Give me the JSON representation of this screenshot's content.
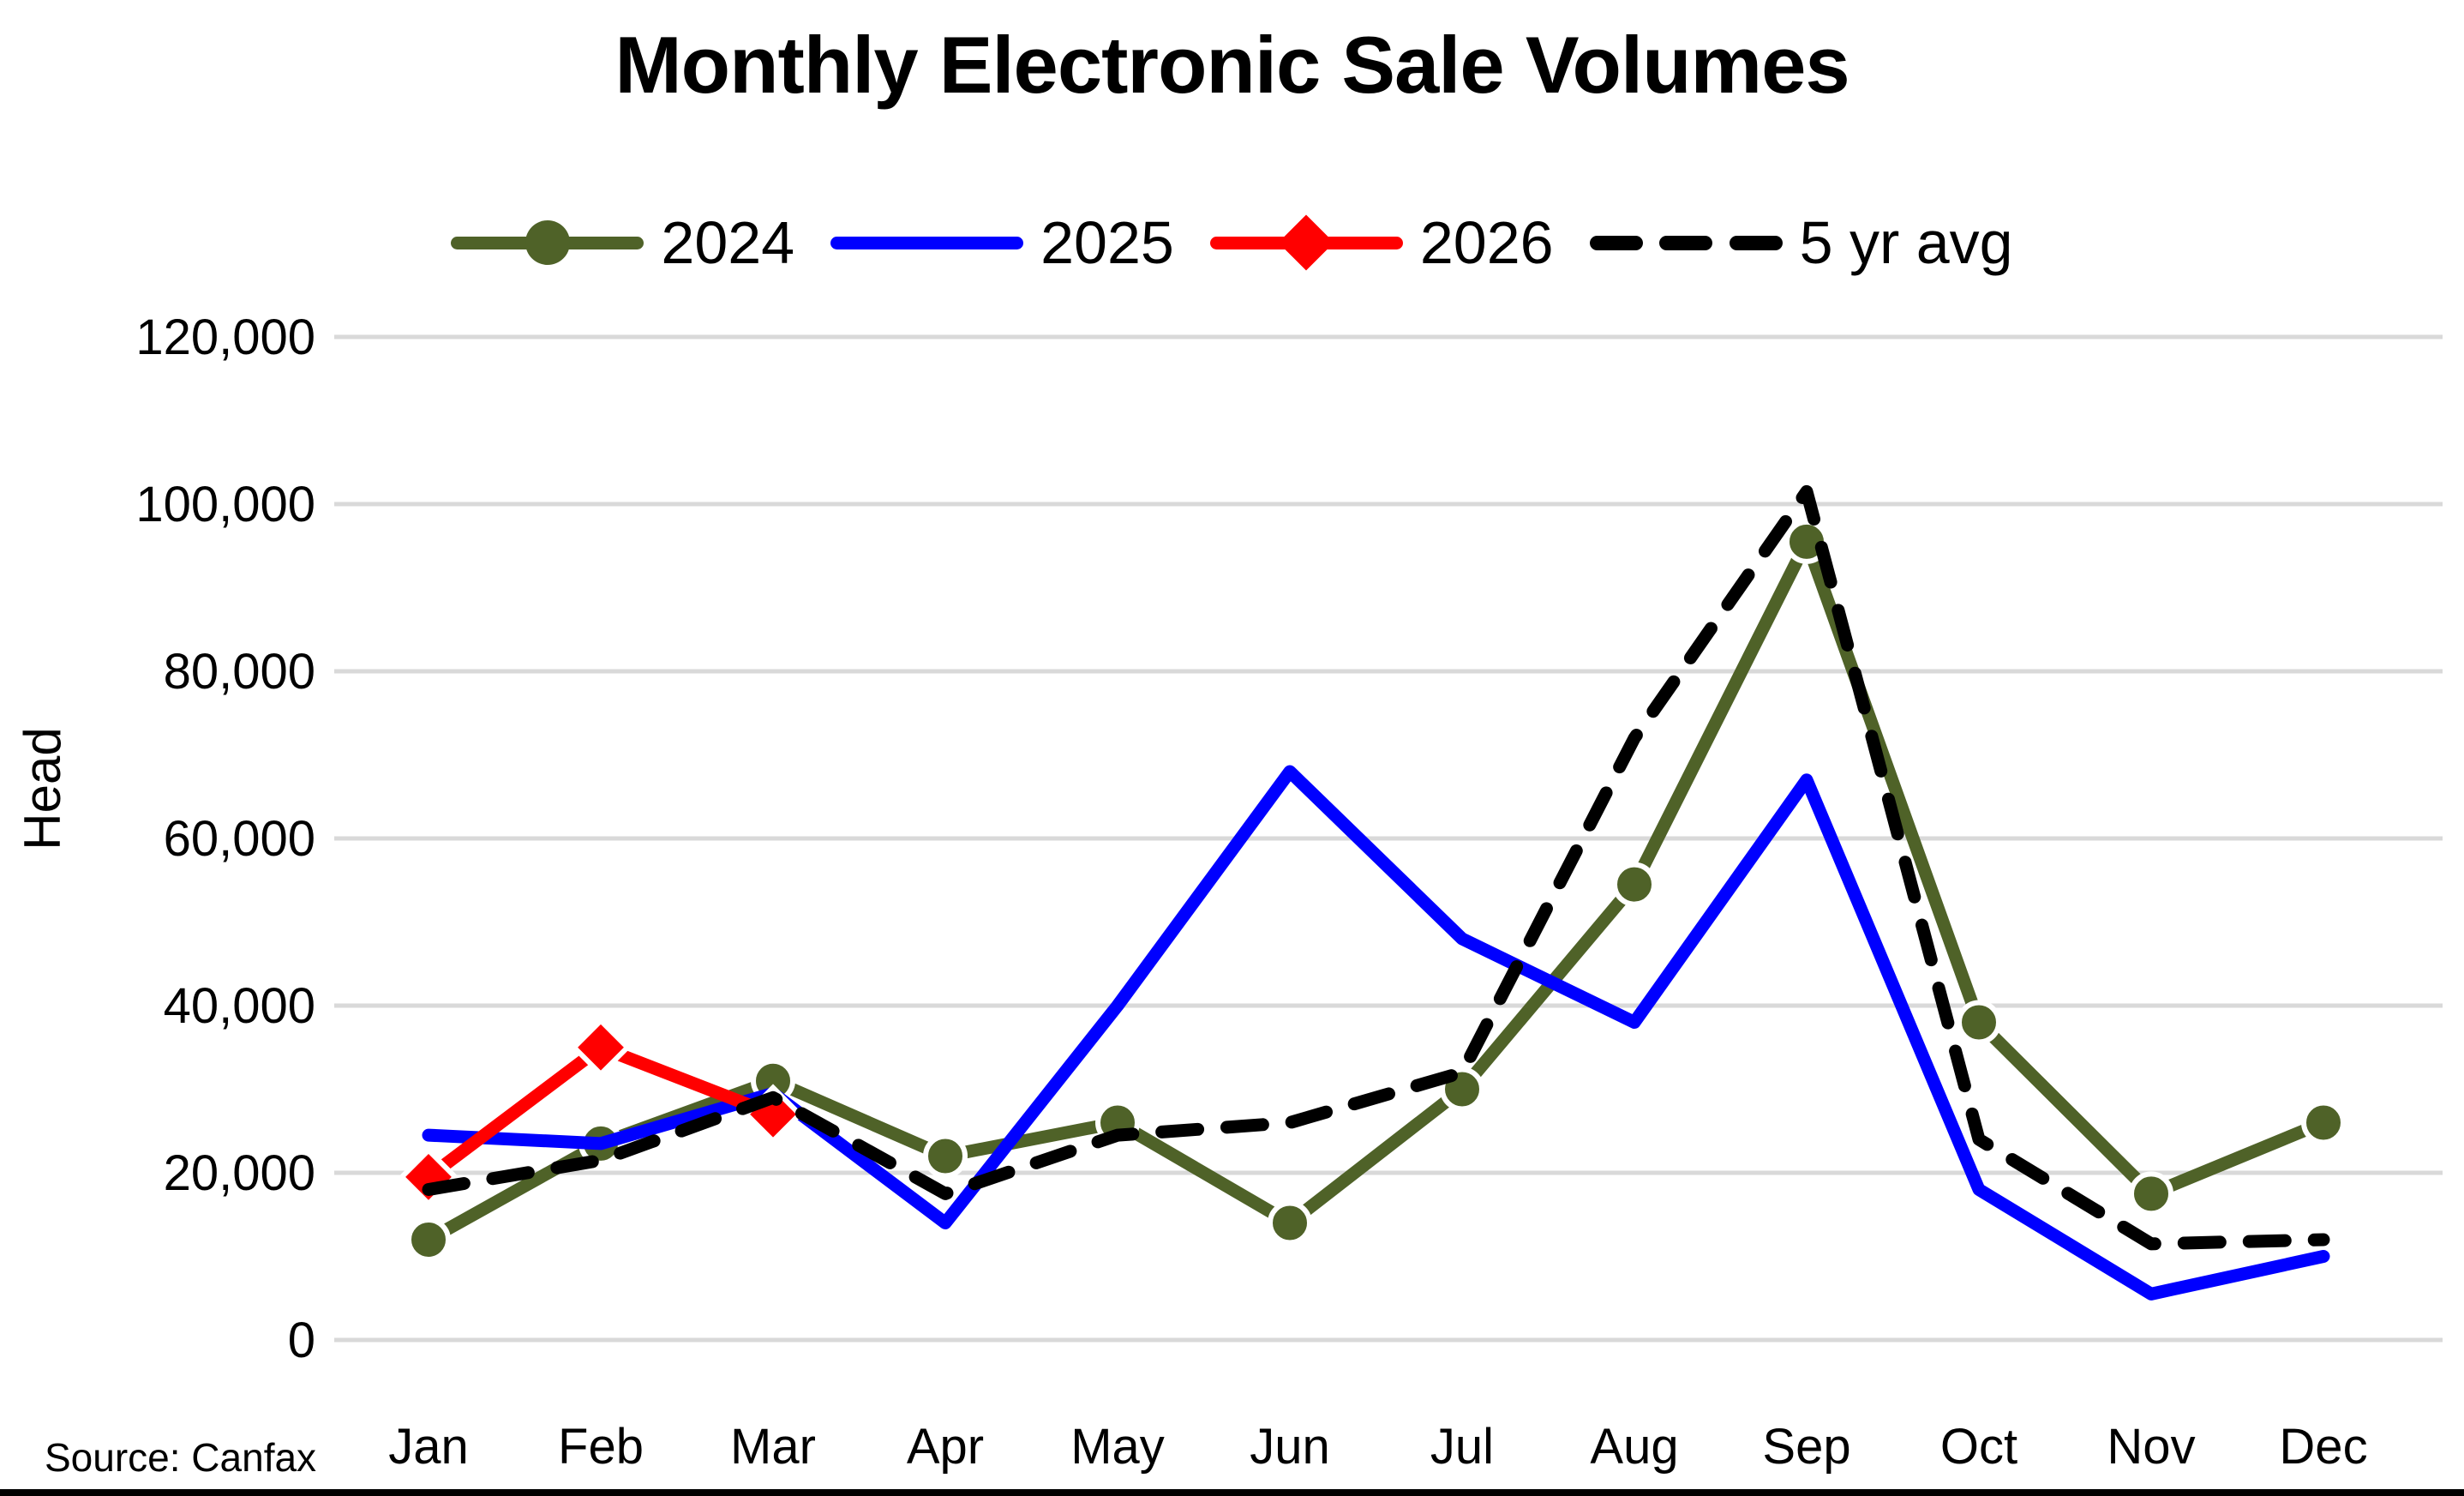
{
  "title": "Monthly Electronic Sale Volumes",
  "source": "Source: Canfax",
  "colors": {
    "background": "#FFFFFF",
    "gridline": "#D9D9D9",
    "text": "#000000",
    "series_2024": "#4F6228",
    "series_2025": "#0000FF",
    "series_2026": "#FF0000",
    "series_5yr": "#000000"
  },
  "chart_data": {
    "type": "line",
    "title": "Monthly Electronic Sale Volumes",
    "xlabel": "",
    "ylabel": "Head",
    "categories": [
      "Jan",
      "Feb",
      "Mar",
      "Apr",
      "May",
      "Jun",
      "Jul",
      "Aug",
      "Sep",
      "Oct",
      "Nov",
      "Dec"
    ],
    "ylim": [
      0,
      120000
    ],
    "ytick_step": 20000,
    "ytick_labels": [
      "0",
      "20,000",
      "40,000",
      "60,000",
      "80,000",
      "100,000",
      "120,000"
    ],
    "grid": "horizontal",
    "legend_position": "top",
    "series": [
      {
        "name": "2024",
        "color": "#4F6228",
        "style": "solid",
        "marker": "circle",
        "values": [
          12000,
          23500,
          31000,
          22000,
          26000,
          14000,
          30000,
          54500,
          95500,
          38000,
          17500,
          26000
        ]
      },
      {
        "name": "2025",
        "color": "#0000FF",
        "style": "solid",
        "marker": "none",
        "values": [
          24500,
          23500,
          29500,
          14000,
          40000,
          68000,
          48000,
          38000,
          67000,
          18000,
          5500,
          10000
        ]
      },
      {
        "name": "2026",
        "color": "#FF0000",
        "style": "solid",
        "marker": "diamond",
        "values": [
          19500,
          35000,
          27000,
          null,
          null,
          null,
          null,
          null,
          null,
          null,
          null,
          null
        ]
      },
      {
        "name": "5 yr avg",
        "color": "#000000",
        "style": "dashed",
        "marker": "none",
        "values": [
          18000,
          21500,
          29000,
          17500,
          24500,
          26000,
          32000,
          72000,
          101500,
          24000,
          11500,
          12000
        ]
      }
    ]
  }
}
